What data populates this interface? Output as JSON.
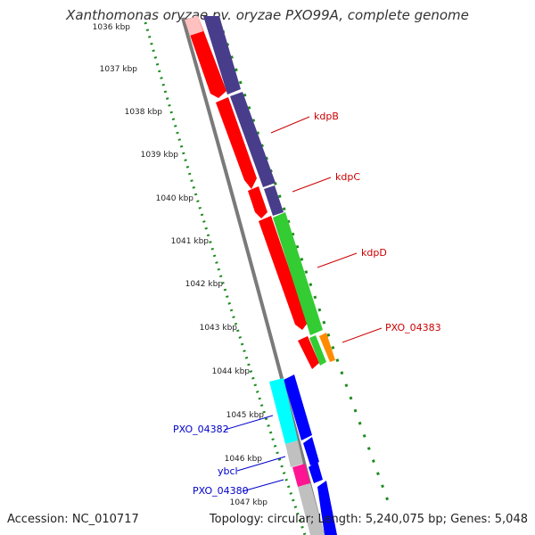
{
  "title": "Xanthomonas oryzae pv. oryzae PXO99A, complete genome",
  "ticks": [
    "1036 kbp",
    "1037 kbp",
    "1038 kbp",
    "1039 kbp",
    "1040 kbp",
    "1041 kbp",
    "1042 kbp",
    "1043 kbp",
    "1044 kbp",
    "1045 kbp",
    "1046 kbp",
    "1047 kbp"
  ],
  "genes_right": [
    "kdpB",
    "kdpC",
    "kdpD",
    "PXO_04383"
  ],
  "genes_left": [
    "PXO_04382",
    "ybcl",
    "PXO_04380"
  ],
  "footer": {
    "accession": "Accession: NC_010717",
    "info": "Topology: circular; Length: 5,240,075 bp; Genes: 5,048"
  },
  "colors": {
    "forward_gene": "#ff0000",
    "reverse_gene": "#0000ff",
    "cog_purple": "#483d8b",
    "cog_green": "#33cc33",
    "cog_cyan": "#00ffff",
    "cog_pink": "#ff1493",
    "cog_orange": "#ff8c00",
    "cog_gray": "#c0c0c0",
    "backbone": "#808080",
    "gc_ticks": "#228b22"
  }
}
